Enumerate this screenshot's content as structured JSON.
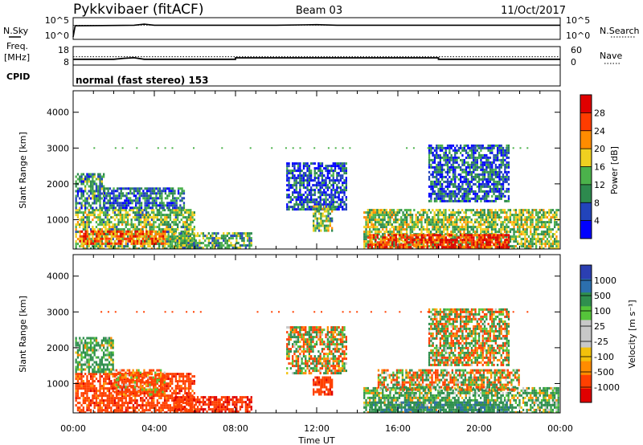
{
  "header": {
    "radar": "Pykkvibaer (fitACF)",
    "beam": "Beam 03",
    "date": "11/Oct/2017"
  },
  "labels": {
    "nsky": "N.Sky",
    "nsearch": "N.Search",
    "freq_line1": "Freq.",
    "freq_line2": "[MHz]",
    "nave": "Nave",
    "cpid": "CPID",
    "cpid_value": "normal (fast stereo) 153",
    "time_axis": "Time UT"
  },
  "colors": {
    "power": [
      "#0000ff",
      "#2244bb",
      "#2d8a4e",
      "#4bb24b",
      "#f0d020",
      "#ff8c00",
      "#ff3c00",
      "#e00000"
    ],
    "velocity": [
      "#e00000",
      "#ff4000",
      "#ff8c00",
      "#f2c10b",
      "#c8c8c8",
      "#c8c8c8",
      "#55c43a",
      "#2f8f4e",
      "#2c6fae",
      "#2b3fb2"
    ]
  },
  "chart_data": [
    {
      "name": "noise",
      "type": "line",
      "ylim_left": [
        1,
        100000
      ],
      "left_ticks": [
        "10^5",
        "10^0"
      ],
      "right_ticks": [
        "10^5",
        "10^0"
      ],
      "x_ticks": [
        "00:00",
        "04:00",
        "08:00",
        "12:00",
        "16:00",
        "20:00",
        "00:00"
      ],
      "xlim_hours": [
        0,
        24
      ],
      "series": [
        {
          "name": "N.Sky",
          "x": [
            0,
            0.1,
            3,
            3.5,
            4,
            10,
            12,
            13,
            24
          ],
          "y": [
            1,
            2000,
            3000,
            6000,
            3000,
            3000,
            4500,
            3000,
            3000
          ]
        },
        {
          "name": "N.Search",
          "x": [
            0,
            24
          ],
          "y": [
            3000,
            3000
          ]
        }
      ]
    },
    {
      "name": "frequency-nave",
      "type": "line",
      "left_ticks": [
        "18",
        "8"
      ],
      "right_ticks": [
        "60",
        "0"
      ],
      "ylim_left": [
        8,
        18
      ],
      "ylim_right": [
        0,
        60
      ],
      "series": [
        {
          "name": "Freq.",
          "x": [
            0,
            2,
            2.5,
            3,
            3.5,
            8,
            8,
            18,
            18,
            24
          ],
          "y": [
            10.5,
            10.5,
            11.2,
            11.6,
            10.5,
            10.5,
            11.5,
            11.5,
            10.5,
            10.5
          ]
        },
        {
          "name": "Nave",
          "x": [
            0,
            24
          ],
          "y": [
            26,
            26
          ]
        }
      ]
    },
    {
      "name": "power",
      "type": "heatmap",
      "ylabel": "Slant Range [km]",
      "ylim": [
        180,
        4600
      ],
      "y_ticks": [
        1000,
        2000,
        3000,
        4000
      ],
      "colorbar_label": "Power [dB]",
      "colorbar_ticks": [
        "28",
        "24",
        "20",
        "16",
        "12",
        "8",
        "4"
      ],
      "colorbar_range": [
        0,
        32
      ],
      "regions": [
        {
          "t0": 0.1,
          "t1": 6.0,
          "r0": 180,
          "r1": 1300,
          "value": 14
        },
        {
          "t0": 0.3,
          "t1": 4.5,
          "r0": 300,
          "r1": 700,
          "value": 24
        },
        {
          "t0": 5.0,
          "t1": 8.8,
          "r0": 180,
          "r1": 650,
          "value": 12
        },
        {
          "t0": 0.1,
          "t1": 1.5,
          "r0": 1300,
          "r1": 2300,
          "value": 10
        },
        {
          "t0": 1.5,
          "t1": 5.5,
          "r0": 1300,
          "r1": 1900,
          "value": 8
        },
        {
          "t0": 10.5,
          "t1": 13.5,
          "r0": 1300,
          "r1": 2600,
          "value": 6
        },
        {
          "t0": 11.8,
          "t1": 12.8,
          "r0": 700,
          "r1": 1400,
          "value": 14
        },
        {
          "t0": 14.3,
          "t1": 23.9,
          "r0": 180,
          "r1": 1300,
          "value": 15
        },
        {
          "t0": 14.5,
          "t1": 21.5,
          "r0": 180,
          "r1": 600,
          "value": 28
        },
        {
          "t0": 17.5,
          "t1": 21.5,
          "r0": 1500,
          "r1": 3100,
          "value": 7
        }
      ]
    },
    {
      "name": "velocity",
      "type": "heatmap",
      "ylabel": "Slant Range [km]",
      "ylim": [
        180,
        4600
      ],
      "y_ticks": [
        1000,
        2000,
        3000,
        4000
      ],
      "colorbar_label": "Velocity [m s⁻¹]",
      "colorbar_ticks": [
        "1000",
        "500",
        "100",
        "25",
        "-25",
        "-100",
        "-500",
        "-1000"
      ],
      "colorbar_range": [
        -1000,
        1000
      ],
      "regions": [
        {
          "t0": 0.1,
          "t1": 6.0,
          "r0": 180,
          "r1": 1300,
          "value": -300
        },
        {
          "t0": 2.0,
          "t1": 4.5,
          "r0": 700,
          "r1": 1400,
          "value": -150
        },
        {
          "t0": 5.0,
          "t1": 8.8,
          "r0": 180,
          "r1": 650,
          "value": -400
        },
        {
          "t0": 0.1,
          "t1": 2.0,
          "r0": 1300,
          "r1": 2300,
          "value": 200
        },
        {
          "t0": 10.5,
          "t1": 13.5,
          "r0": 1300,
          "r1": 2600,
          "value": 0
        },
        {
          "t0": 11.8,
          "t1": 12.8,
          "r0": 700,
          "r1": 1200,
          "value": -350
        },
        {
          "t0": 14.3,
          "t1": 23.9,
          "r0": 180,
          "r1": 900,
          "value": 150
        },
        {
          "t0": 14.5,
          "t1": 21.5,
          "r0": 180,
          "r1": 500,
          "value": 400
        },
        {
          "t0": 15.0,
          "t1": 22.0,
          "r0": 800,
          "r1": 1400,
          "value": 0
        },
        {
          "t0": 17.5,
          "t1": 21.5,
          "r0": 1500,
          "r1": 3100,
          "value": 0
        }
      ]
    }
  ]
}
